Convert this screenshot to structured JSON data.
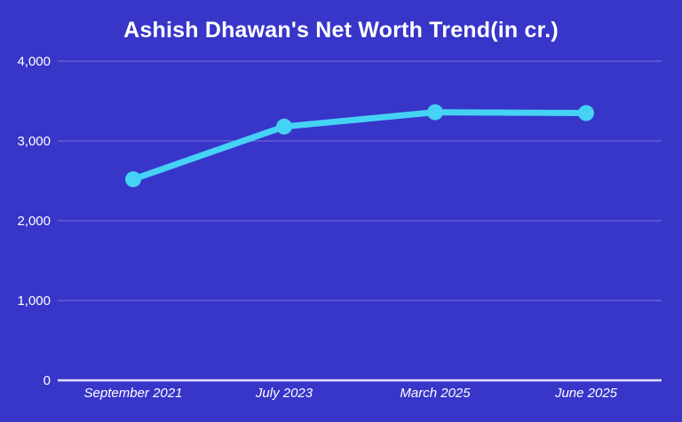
{
  "chart_data": {
    "type": "line",
    "title": "Ashish Dhawan's Net Worth Trend(in cr.)",
    "categories": [
      "September 2021",
      "July 2023",
      "March 2025",
      "June 2025"
    ],
    "series": [
      {
        "name": "Net Worth (in cr.)",
        "values": [
          2520,
          3180,
          3360,
          3350
        ]
      }
    ],
    "xlabel": "",
    "ylabel": "",
    "ylim": [
      0,
      4000
    ],
    "yticks": [
      0,
      1000,
      2000,
      3000,
      4000
    ],
    "grid": true,
    "legend_position": "none",
    "colors": {
      "background": "#3835c9",
      "line": "#45d2f5",
      "point": "#45d2f5",
      "gridline": "rgba(255,255,255,0.30)",
      "baseline": "rgba(255,255,255,0.85)",
      "text": "#ffffff"
    }
  }
}
